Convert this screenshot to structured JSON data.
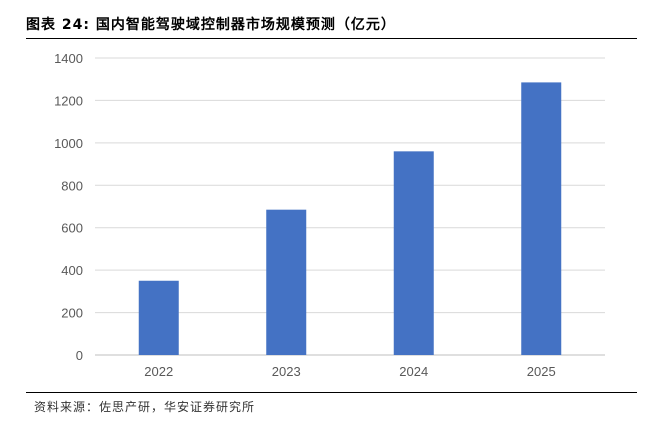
{
  "figure": {
    "title": "图表 24: 国内智能驾驶域控制器市场规模预测（亿元）",
    "source": "资料来源：佐思产研，华安证券研究所"
  },
  "chart_data": {
    "type": "bar",
    "categories": [
      "2022",
      "2023",
      "2024",
      "2025"
    ],
    "values": [
      350,
      685,
      960,
      1285
    ],
    "ylim": [
      0,
      1400
    ],
    "yticks": [
      0,
      200,
      400,
      600,
      800,
      1000,
      1200,
      1400
    ],
    "grid": true,
    "legend": "none",
    "bar_color": "#4472C4",
    "grid_color": "#D9D9D9",
    "axis_color": "#BFBFBF"
  }
}
